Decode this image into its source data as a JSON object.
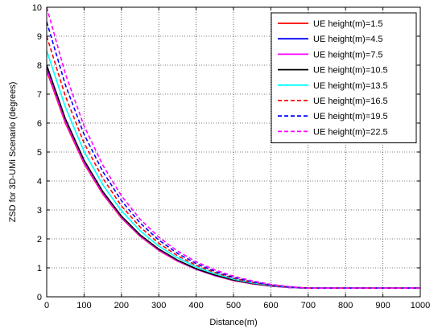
{
  "chart_data": {
    "type": "line",
    "title": "",
    "xlabel": "Distance(m)",
    "ylabel": "ZSD for 3D-UMi Scenario (degrees)",
    "xlim": [
      0,
      1000
    ],
    "ylim": [
      0,
      10
    ],
    "xticks": [
      0,
      100,
      200,
      300,
      400,
      500,
      600,
      700,
      800,
      900,
      1000
    ],
    "yticks": [
      0,
      1,
      2,
      3,
      4,
      5,
      6,
      7,
      8,
      9,
      10
    ],
    "grid": true,
    "legend_position": "top-right",
    "x": [
      0,
      50,
      100,
      150,
      200,
      250,
      300,
      350,
      400,
      450,
      500,
      550,
      600,
      650,
      700,
      750,
      800,
      850,
      900,
      950,
      1000
    ],
    "series": [
      {
        "name": "UE height(m)=1.5",
        "color": "#ff0000",
        "dash": "solid",
        "values": [
          7.8,
          6.0,
          4.6,
          3.55,
          2.72,
          2.09,
          1.6,
          1.23,
          0.95,
          0.73,
          0.56,
          0.45,
          0.37,
          0.32,
          0.3,
          0.3,
          0.3,
          0.3,
          0.3,
          0.3,
          0.3
        ]
      },
      {
        "name": "UE height(m)=4.5",
        "color": "#0000ff",
        "dash": "solid",
        "values": [
          7.9,
          6.08,
          4.66,
          3.6,
          2.76,
          2.12,
          1.63,
          1.25,
          0.96,
          0.74,
          0.57,
          0.46,
          0.38,
          0.32,
          0.3,
          0.3,
          0.3,
          0.3,
          0.3,
          0.3,
          0.3
        ]
      },
      {
        "name": "UE height(m)=7.5",
        "color": "#ff00ff",
        "dash": "solid",
        "values": [
          7.85,
          6.04,
          4.63,
          3.57,
          2.74,
          2.1,
          1.61,
          1.24,
          0.95,
          0.73,
          0.57,
          0.45,
          0.37,
          0.32,
          0.3,
          0.3,
          0.3,
          0.3,
          0.3,
          0.3,
          0.3
        ]
      },
      {
        "name": "UE height(m)=10.5",
        "color": "#000000",
        "dash": "solid",
        "values": [
          8.0,
          6.15,
          4.72,
          3.64,
          2.79,
          2.14,
          1.65,
          1.27,
          0.97,
          0.75,
          0.58,
          0.46,
          0.38,
          0.33,
          0.3,
          0.3,
          0.3,
          0.3,
          0.3,
          0.3,
          0.3
        ]
      },
      {
        "name": "UE height(m)=13.5",
        "color": "#00ffff",
        "dash": "solid",
        "values": [
          8.5,
          6.55,
          5.02,
          3.87,
          2.97,
          2.28,
          1.75,
          1.35,
          1.03,
          0.8,
          0.61,
          0.48,
          0.39,
          0.33,
          0.3,
          0.3,
          0.3,
          0.3,
          0.3,
          0.3,
          0.3
        ]
      },
      {
        "name": "UE height(m)=16.5",
        "color": "#ff0000",
        "dash": "dashed",
        "values": [
          9.0,
          6.93,
          5.31,
          4.1,
          3.14,
          2.41,
          1.85,
          1.42,
          1.09,
          0.84,
          0.64,
          0.5,
          0.4,
          0.34,
          0.3,
          0.3,
          0.3,
          0.3,
          0.3,
          0.3,
          0.3
        ]
      },
      {
        "name": "UE height(m)=19.5",
        "color": "#0000ff",
        "dash": "dashed",
        "values": [
          9.5,
          7.32,
          5.61,
          4.33,
          3.32,
          2.55,
          1.96,
          1.5,
          1.15,
          0.88,
          0.67,
          0.52,
          0.41,
          0.34,
          0.3,
          0.3,
          0.3,
          0.3,
          0.3,
          0.3,
          0.3
        ]
      },
      {
        "name": "UE height(m)=22.5",
        "color": "#ff00ff",
        "dash": "dashed",
        "values": [
          10.0,
          7.7,
          5.9,
          4.55,
          3.49,
          2.68,
          2.06,
          1.58,
          1.21,
          0.93,
          0.71,
          0.55,
          0.43,
          0.35,
          0.3,
          0.3,
          0.3,
          0.3,
          0.3,
          0.3,
          0.3
        ]
      }
    ]
  }
}
